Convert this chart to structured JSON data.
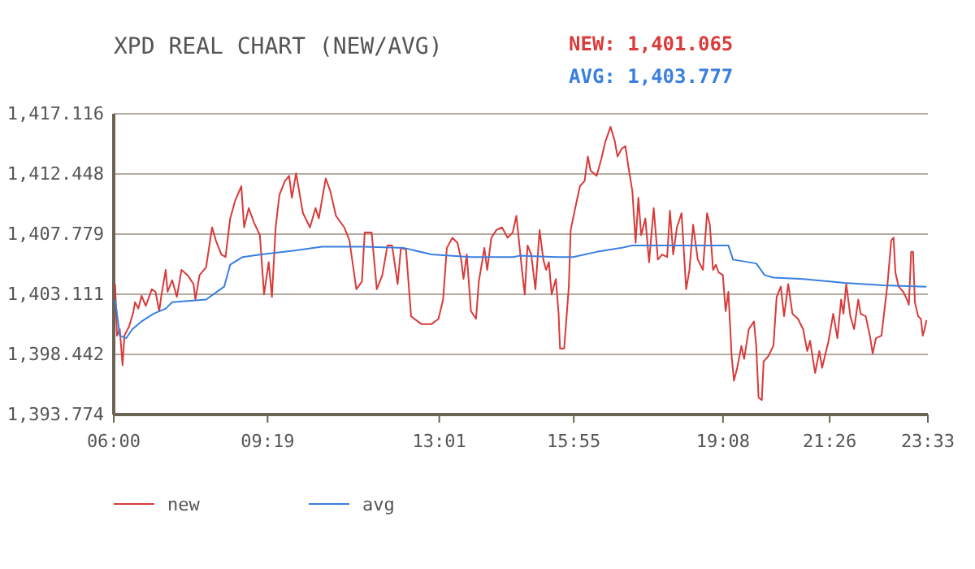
{
  "chart_data": {
    "type": "line",
    "title": "XPD REAL CHART (NEW/AVG)",
    "annotations": [
      "NEW: 1,401.065",
      "AVG: 1,403.777"
    ],
    "xlim": [
      6,
      23.55
    ],
    "xticks": [
      {
        "value": 6,
        "label": "06:00"
      },
      {
        "value": 9.3167,
        "label": "09:19"
      },
      {
        "value": 13.0167,
        "label": "13:01"
      },
      {
        "value": 15.9167,
        "label": "15:55"
      },
      {
        "value": 19.1333,
        "label": "19:08"
      },
      {
        "value": 21.4333,
        "label": "21:26"
      },
      {
        "value": 23.55,
        "label": "23:33"
      }
    ],
    "ylim": [
      1393.774,
      1417.116
    ],
    "yticks": [
      {
        "value": 1393.774,
        "label": "1,393.774"
      },
      {
        "value": 1398.442,
        "label": "1,398.442"
      },
      {
        "value": 1403.111,
        "label": "1,403.111"
      },
      {
        "value": 1407.779,
        "label": "1,407.779"
      },
      {
        "value": 1412.448,
        "label": "1,412.448"
      },
      {
        "value": 1417.116,
        "label": "1,417.116"
      }
    ],
    "grid": "y",
    "legend": "bottom",
    "marker": "none",
    "line_style": "solid",
    "series": [
      {
        "name": "new",
        "color": "#d93a3a",
        "x": [
          6.03,
          6.07,
          6.13,
          6.19,
          6.23,
          6.33,
          6.42,
          6.46,
          6.53,
          6.6,
          6.69,
          6.82,
          6.9,
          6.98,
          7.03,
          7.12,
          7.16,
          7.26,
          7.36,
          7.46,
          7.59,
          7.72,
          7.76,
          7.85,
          7.99,
          8.12,
          8.2,
          8.32,
          8.41,
          8.51,
          8.62,
          8.75,
          8.81,
          8.91,
          9.02,
          9.15,
          9.24,
          9.34,
          9.41,
          9.49,
          9.57,
          9.69,
          9.78,
          9.84,
          9.93,
          10.08,
          10.23,
          10.35,
          10.42,
          10.57,
          10.67,
          10.79,
          10.97,
          11.08,
          11.23,
          11.35,
          11.41,
          11.56,
          11.67,
          11.79,
          11.9,
          12.0,
          12.12,
          12.19,
          12.3,
          12.41,
          12.63,
          12.85,
          13.0,
          13.1,
          13.18,
          13.3,
          13.41,
          13.49,
          13.54,
          13.61,
          13.7,
          13.81,
          13.87,
          13.99,
          14.05,
          14.14,
          14.25,
          14.37,
          14.49,
          14.6,
          14.68,
          14.8,
          14.86,
          14.92,
          15.0,
          15.09,
          15.18,
          15.26,
          15.32,
          15.38,
          15.44,
          15.53,
          15.59,
          15.62,
          15.71,
          15.81,
          15.85,
          15.96,
          16.05,
          16.15,
          16.22,
          16.28,
          16.41,
          16.51,
          16.6,
          16.71,
          16.8,
          16.86,
          16.95,
          17.03,
          17.09,
          17.18,
          17.25,
          17.31,
          17.37,
          17.46,
          17.54,
          17.64,
          17.73,
          17.82,
          17.93,
          17.99,
          18.06,
          18.14,
          18.24,
          18.34,
          18.41,
          18.49,
          18.59,
          18.7,
          18.79,
          18.85,
          18.92,
          18.98,
          19.04,
          19.13,
          19.19,
          19.25,
          19.32,
          19.37,
          19.44,
          19.53,
          19.59,
          19.69,
          19.8,
          19.85,
          19.9,
          19.97,
          20.01,
          20.11,
          20.22,
          20.29,
          20.38,
          20.45,
          20.54,
          20.63,
          20.75,
          20.86,
          20.95,
          21.01,
          21.12,
          21.21,
          21.27,
          21.41,
          21.51,
          21.6,
          21.68,
          21.73,
          21.79,
          21.88,
          21.96,
          22.05,
          22.1,
          22.21,
          22.3,
          22.36,
          22.43,
          22.55,
          22.64,
          22.68,
          22.76,
          22.81,
          22.85,
          22.92,
          23.02,
          23.1,
          23.14,
          23.19,
          23.23,
          23.27,
          23.34,
          23.4,
          23.44,
          23.48,
          23.52
        ],
        "values": [
          1403.9,
          1399.9,
          1400.4,
          1397.6,
          1399.9,
          1400.6,
          1401.7,
          1402.5,
          1402.0,
          1403.0,
          1402.2,
          1403.5,
          1403.3,
          1401.8,
          1403.1,
          1405.0,
          1403.3,
          1404.2,
          1402.9,
          1405.0,
          1404.6,
          1403.9,
          1402.7,
          1404.6,
          1405.2,
          1408.3,
          1407.3,
          1406.2,
          1406.0,
          1409.0,
          1410.4,
          1411.5,
          1408.3,
          1409.8,
          1408.7,
          1407.7,
          1403.1,
          1405.6,
          1402.9,
          1408.3,
          1410.8,
          1411.9,
          1412.3,
          1410.6,
          1412.5,
          1409.4,
          1408.3,
          1409.8,
          1409.0,
          1412.1,
          1411.1,
          1409.2,
          1408.3,
          1407.3,
          1403.5,
          1404.1,
          1407.9,
          1407.9,
          1403.5,
          1404.6,
          1406.9,
          1406.9,
          1403.9,
          1406.7,
          1406.6,
          1401.4,
          1400.8,
          1400.8,
          1401.2,
          1402.7,
          1406.7,
          1407.5,
          1407.1,
          1405.8,
          1404.3,
          1406.2,
          1401.8,
          1401.2,
          1404.1,
          1406.7,
          1405.0,
          1407.5,
          1408.1,
          1408.3,
          1407.5,
          1407.9,
          1409.2,
          1405.0,
          1403.1,
          1406.9,
          1406.2,
          1403.5,
          1408.1,
          1405.8,
          1405.0,
          1405.6,
          1403.1,
          1404.3,
          1401.6,
          1398.9,
          1398.9,
          1403.7,
          1408.1,
          1410.0,
          1411.5,
          1411.9,
          1413.8,
          1412.7,
          1412.3,
          1413.6,
          1415.0,
          1416.1,
          1415.0,
          1413.8,
          1414.4,
          1414.6,
          1413.1,
          1411.1,
          1407.1,
          1410.6,
          1407.7,
          1409.0,
          1405.6,
          1409.8,
          1405.8,
          1406.2,
          1406.0,
          1409.6,
          1406.2,
          1408.3,
          1409.4,
          1403.5,
          1405.0,
          1408.5,
          1405.8,
          1405.0,
          1409.4,
          1408.5,
          1405.0,
          1405.4,
          1404.8,
          1404.6,
          1401.8,
          1403.3,
          1398.3,
          1396.4,
          1397.4,
          1399.1,
          1398.1,
          1400.4,
          1401.0,
          1399.1,
          1395.1,
          1394.9,
          1397.9,
          1398.3,
          1399.1,
          1402.9,
          1403.7,
          1401.4,
          1403.9,
          1401.6,
          1401.2,
          1400.4,
          1398.7,
          1399.5,
          1397.0,
          1398.7,
          1397.4,
          1399.5,
          1401.6,
          1399.7,
          1402.7,
          1401.6,
          1403.9,
          1401.4,
          1400.4,
          1402.7,
          1401.6,
          1401.4,
          1399.9,
          1398.5,
          1399.7,
          1399.9,
          1402.7,
          1403.9,
          1407.3,
          1407.5,
          1404.8,
          1403.7,
          1403.3,
          1402.7,
          1402.3,
          1406.4,
          1406.4,
          1402.5,
          1401.4,
          1401.2,
          1399.9,
          1400.4,
          1401.1
        ]
      },
      {
        "name": "avg",
        "color": "#3a7fe0",
        "x": [
          6.03,
          6.13,
          6.27,
          6.4,
          6.6,
          6.86,
          7.12,
          7.26,
          7.99,
          8.38,
          8.51,
          8.78,
          9.18,
          9.9,
          10.49,
          11.38,
          12.26,
          12.85,
          13.7,
          14.62,
          14.74,
          15.55,
          15.9,
          16.41,
          16.93,
          17.18,
          19.25,
          19.35,
          19.85,
          20.03,
          20.22,
          20.86,
          21.75,
          22.59,
          23.52
        ],
        "values": [
          1402.7,
          1399.9,
          1399.7,
          1400.4,
          1401.0,
          1401.6,
          1402.0,
          1402.5,
          1402.7,
          1403.7,
          1405.4,
          1406.0,
          1406.2,
          1406.5,
          1406.8,
          1406.8,
          1406.7,
          1406.2,
          1406.0,
          1406.0,
          1406.1,
          1406.0,
          1406.0,
          1406.4,
          1406.7,
          1406.9,
          1406.9,
          1405.8,
          1405.5,
          1404.6,
          1404.4,
          1404.3,
          1404.0,
          1403.8,
          1403.7
        ]
      }
    ]
  }
}
